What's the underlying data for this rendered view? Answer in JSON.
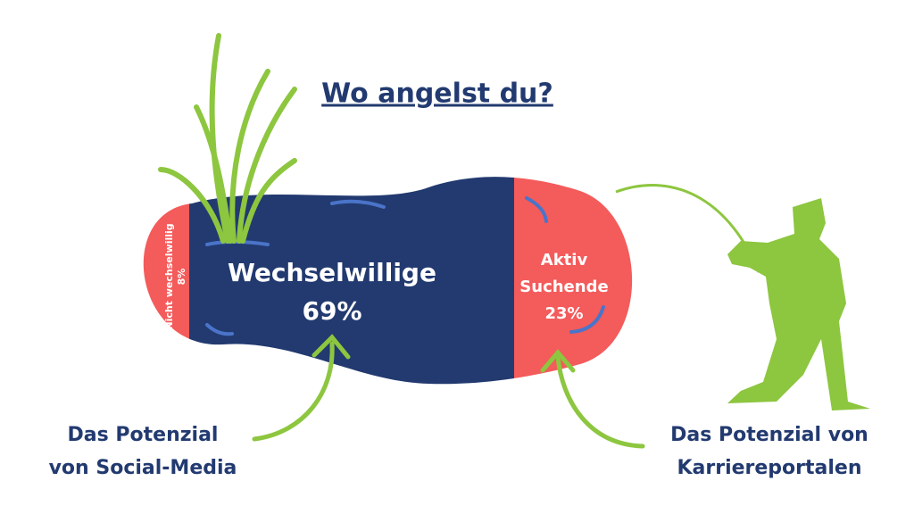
{
  "header": {
    "title": "Wo angelst du?"
  },
  "segments": [
    {
      "label": [
        "Nicht wechselwillig"
      ],
      "value": "8%"
    },
    {
      "label": [
        "Wechselwillige"
      ],
      "value": "69%"
    },
    {
      "label": [
        "Aktiv",
        "Suchende"
      ],
      "value": "23%"
    }
  ],
  "captions": [
    {
      "lines": [
        "Das Potenzial",
        "von Social-Media"
      ]
    },
    {
      "lines": [
        "Das Potenzial von",
        "Karriereportalen"
      ]
    }
  ]
}
